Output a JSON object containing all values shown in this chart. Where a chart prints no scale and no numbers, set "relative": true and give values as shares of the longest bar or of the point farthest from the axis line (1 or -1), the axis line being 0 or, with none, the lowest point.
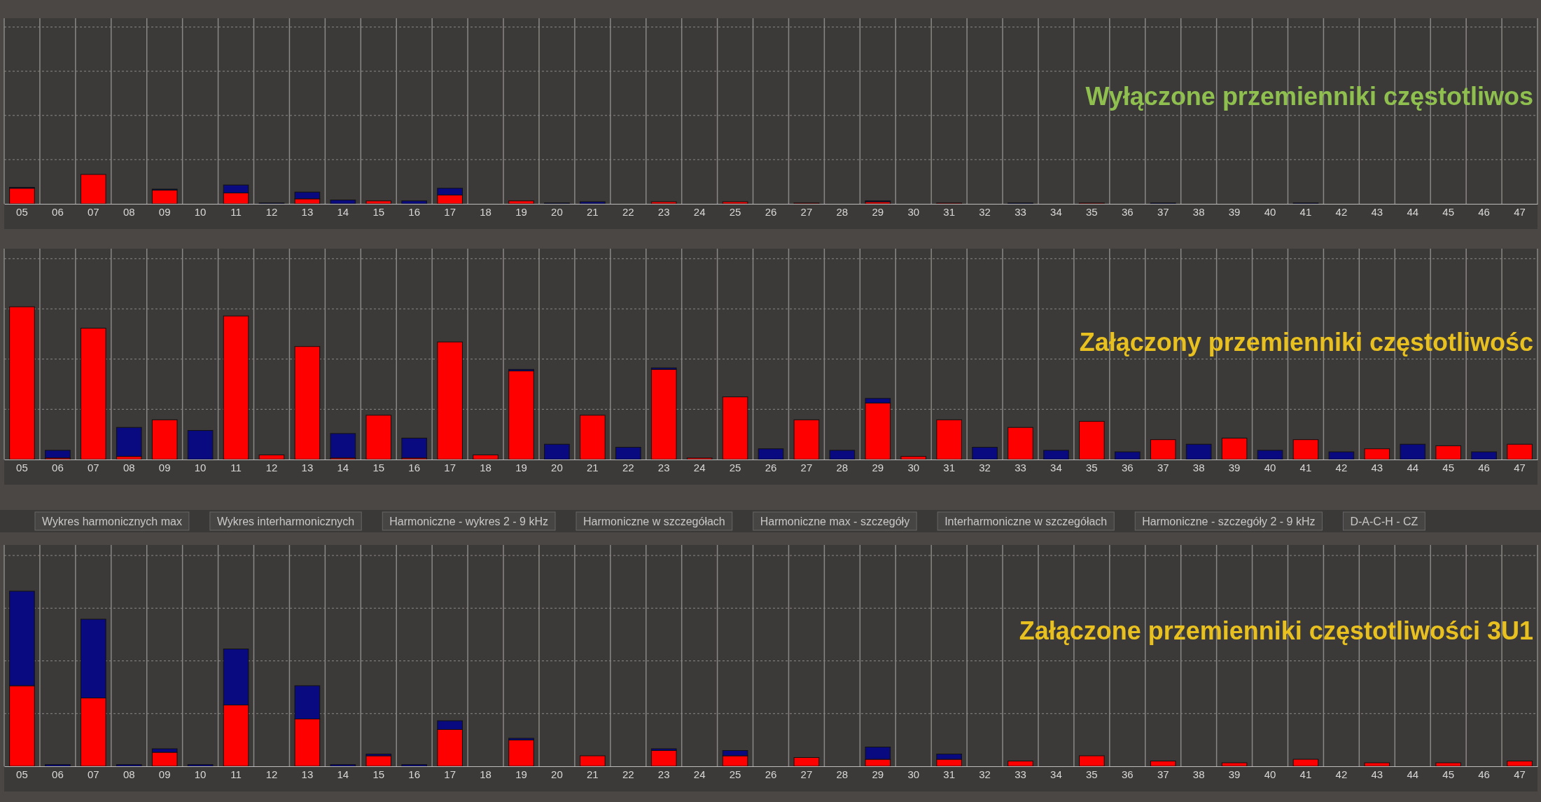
{
  "chart_data": [
    {
      "type": "bar",
      "stacked": true,
      "relative": true,
      "grid": true,
      "title": "Wyłączone przemienniki częstotliwos",
      "categories": [
        "05",
        "06",
        "07",
        "08",
        "09",
        "10",
        "11",
        "12",
        "13",
        "14",
        "15",
        "16",
        "17",
        "18",
        "19",
        "20",
        "21",
        "22",
        "23",
        "24",
        "25",
        "26",
        "27",
        "28",
        "29",
        "30",
        "31",
        "32",
        "33",
        "34",
        "35",
        "36",
        "37",
        "38",
        "39",
        "40",
        "41",
        "42",
        "43",
        "44",
        "45",
        "46",
        "47"
      ],
      "series": [
        {
          "color": "#ff0000",
          "values": [
            0.53,
            0,
            1.0,
            0,
            0.47,
            0,
            0.37,
            0,
            0.17,
            0,
            0.1,
            0,
            0.3,
            0,
            0.1,
            0,
            0,
            0,
            0.07,
            0,
            0.07,
            0,
            0.03,
            0,
            0.07,
            0,
            0.03,
            0,
            0,
            0,
            0.03,
            0,
            0,
            0,
            0,
            0,
            0,
            0,
            0,
            0,
            0,
            0,
            0
          ]
        },
        {
          "color": "#0a0a80",
          "values": [
            0.03,
            0,
            0,
            0,
            0.03,
            0,
            0.27,
            0.03,
            0.23,
            0.13,
            0,
            0.1,
            0.23,
            0,
            0,
            0.03,
            0.07,
            0,
            0,
            0,
            0,
            0,
            0,
            0,
            0.03,
            0,
            0,
            0,
            0.03,
            0,
            0,
            0,
            0.03,
            0,
            0,
            0,
            0.03,
            0,
            0,
            0,
            0,
            0,
            0
          ]
        }
      ]
    },
    {
      "type": "bar",
      "stacked": true,
      "relative": true,
      "grid": true,
      "title": "Załączony  przemienniki częstotliwośc",
      "categories": [
        "05",
        "06",
        "07",
        "08",
        "09",
        "10",
        "11",
        "12",
        "13",
        "14",
        "15",
        "16",
        "17",
        "18",
        "19",
        "20",
        "21",
        "22",
        "23",
        "24",
        "25",
        "26",
        "27",
        "28",
        "29",
        "30",
        "31",
        "32",
        "33",
        "34",
        "35",
        "36",
        "37",
        "38",
        "39",
        "40",
        "41",
        "42",
        "43",
        "44",
        "45",
        "46",
        "47"
      ],
      "series": [
        {
          "color": "#ff0000",
          "values": [
            1.0,
            0.01,
            0.86,
            0.02,
            0.26,
            0,
            0.94,
            0.03,
            0.74,
            0.01,
            0.29,
            0.01,
            0.77,
            0.03,
            0.58,
            0,
            0.29,
            0,
            0.59,
            0.01,
            0.41,
            0,
            0.26,
            0,
            0.37,
            0.02,
            0.26,
            0,
            0.21,
            0,
            0.25,
            0,
            0.13,
            0,
            0.14,
            0,
            0.13,
            0,
            0.07,
            0,
            0.09,
            0,
            0.1
          ]
        },
        {
          "color": "#0a0a80",
          "values": [
            0,
            0.05,
            0,
            0.19,
            0,
            0.19,
            0,
            0,
            0,
            0.16,
            0,
            0.13,
            0,
            0,
            0.01,
            0.1,
            0,
            0.08,
            0.01,
            0,
            0,
            0.07,
            0,
            0.06,
            0.03,
            0,
            0,
            0.08,
            0,
            0.06,
            0,
            0.05,
            0,
            0.1,
            0,
            0.06,
            0,
            0.05,
            0,
            0.1,
            0,
            0.05,
            0
          ]
        }
      ]
    },
    {
      "type": "bar",
      "stacked": true,
      "relative": true,
      "grid": true,
      "title": "Załączone przemienniki częstotliwości 3U1",
      "annotations": [
        "Wykres harmonicznych max",
        "Wykres interharmonicznych",
        "Harmoniczne - wykres 2 - 9 kHz",
        "Harmoniczne w szczegółach",
        "Harmoniczne max - szczegóły",
        "Interharmoniczne w szczegółach",
        "Harmoniczne - szczegóły 2 - 9 kHz",
        "D-A-C-H - CZ"
      ],
      "categories": [
        "05",
        "06",
        "07",
        "08",
        "09",
        "10",
        "11",
        "12",
        "13",
        "14",
        "15",
        "16",
        "17",
        "18",
        "19",
        "20",
        "21",
        "22",
        "23",
        "24",
        "25",
        "26",
        "27",
        "28",
        "29",
        "30",
        "31",
        "32",
        "33",
        "34",
        "35",
        "36",
        "37",
        "38",
        "39",
        "40",
        "41",
        "42",
        "43",
        "44",
        "45",
        "46",
        "47"
      ],
      "series": [
        {
          "color": "#ff0000",
          "values": [
            0.46,
            0,
            0.39,
            0,
            0.08,
            0,
            0.35,
            0,
            0.27,
            0,
            0.06,
            0,
            0.21,
            0,
            0.15,
            0,
            0.06,
            0,
            0.09,
            0,
            0.06,
            0,
            0.05,
            0,
            0.04,
            0,
            0.04,
            0,
            0.03,
            0,
            0.06,
            0,
            0.03,
            0,
            0.02,
            0,
            0.04,
            0,
            0.02,
            0,
            0.02,
            0,
            0.03
          ]
        },
        {
          "color": "#0a0a80",
          "values": [
            0.54,
            0.01,
            0.45,
            0.01,
            0.02,
            0.01,
            0.32,
            0,
            0.19,
            0.01,
            0.01,
            0.01,
            0.05,
            0,
            0.01,
            0,
            0,
            0,
            0.01,
            0,
            0.03,
            0,
            0,
            0,
            0.07,
            0,
            0.03,
            0,
            0,
            0,
            0,
            0,
            0,
            0,
            0,
            0,
            0,
            0,
            0,
            0,
            0,
            0,
            0
          ]
        }
      ]
    }
  ]
}
